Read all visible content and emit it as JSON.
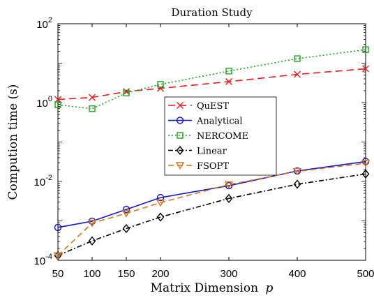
{
  "chart_data": {
    "type": "line",
    "title": "Duration Study",
    "xlabel": "Matrix Dimension",
    "xlabel_var": "p",
    "ylabel": "Compution time (s)",
    "x": [
      50,
      100,
      150,
      200,
      300,
      400,
      500
    ],
    "xticks": [
      "50",
      "100",
      "150",
      "200",
      "300",
      "400",
      "500"
    ],
    "xlim": [
      50,
      500
    ],
    "ylim": [
      0.0001,
      100
    ],
    "yscale": "log",
    "yticks": [
      {
        "base": "10",
        "exp": "-4",
        "value": 0.0001
      },
      {
        "base": "10",
        "exp": "-2",
        "value": 0.01
      },
      {
        "base": "10",
        "exp": "0",
        "value": 1
      },
      {
        "base": "10",
        "exp": "2",
        "value": 100
      }
    ],
    "grid": false,
    "legend_position": "center",
    "series": [
      {
        "name": "QuEST",
        "color": "#e8191c",
        "dash": "10,6",
        "marker": "x",
        "values": [
          1.2,
          1.35,
          1.9,
          2.3,
          3.4,
          5.2,
          7.2
        ]
      },
      {
        "name": "Analytical",
        "color": "#1414c8",
        "dash": "",
        "marker": "circle",
        "values": [
          0.00068,
          0.00098,
          0.00195,
          0.0039,
          0.0078,
          0.0185,
          0.032
        ]
      },
      {
        "name": "NERCOME",
        "color": "#1fa31f",
        "dash": "2,3",
        "marker": "square",
        "values": [
          0.88,
          0.7,
          1.75,
          2.9,
          6.3,
          13.0,
          22.0
        ]
      },
      {
        "name": "Linear",
        "color": "#000000",
        "dash": "7,3,2,3",
        "marker": "diamond",
        "values": [
          0.000132,
          0.00031,
          0.00064,
          0.00125,
          0.0037,
          0.0085,
          0.0155
        ]
      },
      {
        "name": "FSOPT",
        "color": "#d4731f",
        "dash": "8,5",
        "marker": "triangle-down",
        "values": [
          0.000132,
          0.00088,
          0.00155,
          0.0029,
          0.0083,
          0.018,
          0.029
        ]
      }
    ]
  }
}
